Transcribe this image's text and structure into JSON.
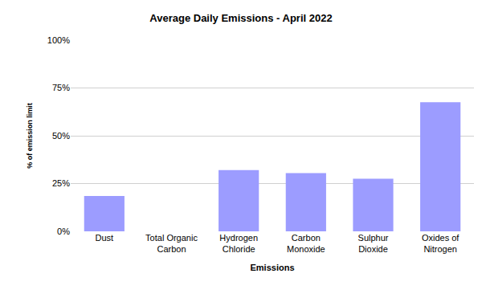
{
  "chart_data": {
    "type": "bar",
    "title": "Average Daily Emissions - April 2022",
    "x_label": "Emissions",
    "y_label": "% of emission limit",
    "categories": [
      "Dust",
      "Total Organic Carbon",
      "Hydrogen Chloride",
      "Carbon Monoxide",
      "Sulphur Dioxide",
      "Oxides of Nitrogen"
    ],
    "values": [
      18.5,
      0,
      32,
      30.5,
      27.5,
      67.5
    ],
    "color": "#9c9cff",
    "ylim": [
      0,
      100
    ],
    "yticks": [
      {
        "value": 0,
        "label": "0%"
      },
      {
        "value": 25,
        "label": "25%"
      },
      {
        "value": 50,
        "label": "50%"
      },
      {
        "value": 75,
        "label": "75%"
      },
      {
        "value": 100,
        "label": "100%"
      }
    ],
    "grid": true
  }
}
